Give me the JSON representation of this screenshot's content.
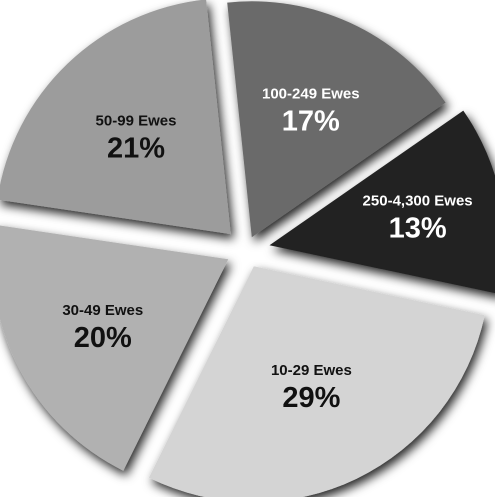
{
  "chart_data": {
    "type": "pie",
    "exploded": true,
    "labels": [
      "100-249 Ewes",
      "250-4,300 Ewes",
      "10-29 Ewes",
      "30-49 Ewes",
      "50-99 Ewes"
    ],
    "values": [
      17,
      13,
      29,
      20,
      21
    ],
    "value_labels": [
      "17%",
      "13%",
      "29%",
      "20%",
      "21%"
    ],
    "colors": [
      "#6b6b6b",
      "#232323",
      "#d4d4d4",
      "#b1b1b1",
      "#9c9c9c"
    ],
    "label_colors": [
      "#ffffff",
      "#ffffff",
      "#111111",
      "#111111",
      "#111111"
    ]
  }
}
